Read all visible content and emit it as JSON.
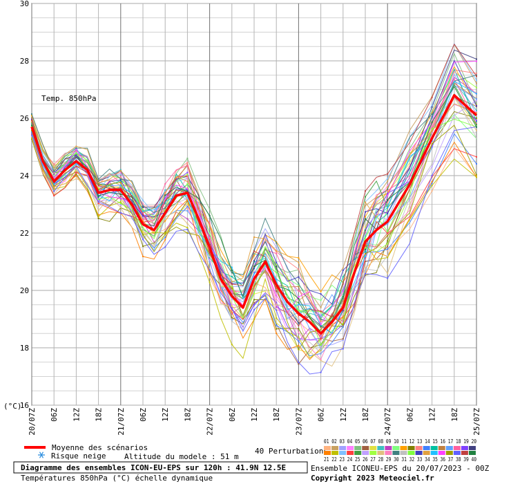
{
  "chart_data": {
    "type": "line",
    "annotation": "Temp. 850hPa",
    "ylabel": "(°C)",
    "ylim": [
      16,
      30
    ],
    "yticks": [
      16,
      18,
      20,
      22,
      24,
      26,
      28,
      30
    ],
    "x_ticks": [
      "20/07Z",
      "06Z",
      "12Z",
      "18Z",
      "21/07Z",
      "06Z",
      "12Z",
      "18Z",
      "22/07Z",
      "06Z",
      "12Z",
      "18Z",
      "23/07Z",
      "06Z",
      "12Z",
      "18Z",
      "24/07Z",
      "06Z",
      "12Z",
      "18Z",
      "25/07Z"
    ],
    "grid": true,
    "x_hours": [
      0,
      3,
      6,
      9,
      12,
      15,
      18,
      21,
      24,
      27,
      30,
      33,
      36,
      39,
      42,
      45,
      48,
      51,
      54,
      57,
      60,
      63,
      66,
      69,
      72,
      75,
      78,
      81,
      84,
      87,
      90,
      93,
      96,
      102,
      108,
      114,
      120
    ],
    "series": [
      {
        "name": "Moyenne des scénarios",
        "color": "#ff0000",
        "values": [
          25.7,
          24.5,
          23.8,
          24.2,
          24.5,
          24.2,
          23.4,
          23.5,
          23.5,
          23.0,
          22.3,
          22.1,
          22.7,
          23.3,
          23.4,
          22.5,
          21.5,
          20.4,
          19.8,
          19.4,
          20.4,
          21.0,
          20.2,
          19.6,
          19.2,
          18.9,
          18.5,
          18.9,
          19.4,
          20.6,
          21.7,
          22.1,
          22.4,
          23.7,
          25.3,
          26.8,
          26.1
        ]
      }
    ],
    "perturbation_count": 40
  },
  "legend": {
    "mean_label": "Moyenne des scénarios",
    "snow_label": "Risque neige",
    "altitude_label": "Altitude du modele : 51 m",
    "perturbations_label": "40 Perturbations",
    "swatch_row1": "01 02 03 04 05 06 07 08 09 10 11 12 13 14 15 16 17 18 19 20",
    "swatch_row2": "21 22 23 24 25 26 27 28 29 30 31 32 33 34 35 36 37 38 39 40",
    "swatch_colors": [
      "#ffb380",
      "#c8a060",
      "#a0a0ff",
      "#ff80ff",
      "#80c080",
      "#a06040",
      "#e0e040",
      "#40c0c0",
      "#c040c0",
      "#80ff80",
      "#ffa000",
      "#808000",
      "#ff8080",
      "#4080ff",
      "#00c0a0",
      "#c08040",
      "#60a0ff",
      "#ff60a0",
      "#8040ff",
      "#404080",
      "#ff8000",
      "#c0c000",
      "#80c0ff",
      "#ff4040",
      "#40a040",
      "#c0a0ff",
      "#a0ff40",
      "#e0c080",
      "#ff80c0",
      "#408080",
      "#c0c0c0",
      "#80ff40",
      "#4040c0",
      "#e0a040",
      "#20c0ff",
      "#ff40ff",
      "#a0a000",
      "#6060ff",
      "#c04040",
      "#208040"
    ]
  },
  "footer": {
    "title": "Diagramme des ensembles ICON-EU-EPS sur 120h : 41.9N 12.5E",
    "subtitle": "Températures 850hPa (°C) échelle dynamique",
    "run": "Ensemble ICONEU-EPS du 20/07/2023 - 00Z",
    "copyright": "Copyright 2023 Meteociel.fr"
  }
}
